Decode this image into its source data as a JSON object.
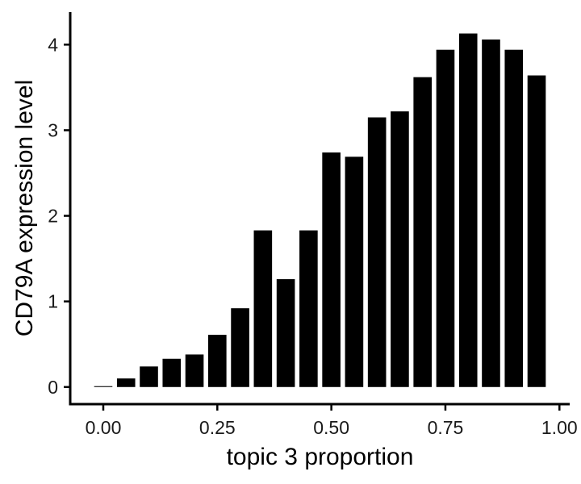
{
  "chart_data": {
    "type": "bar",
    "title": "",
    "xlabel": "topic 3 proportion",
    "ylabel": "CD79A expression level",
    "x": [
      0.0,
      0.05,
      0.1,
      0.15,
      0.2,
      0.25,
      0.3,
      0.35,
      0.4,
      0.45,
      0.5,
      0.55,
      0.6,
      0.65,
      0.7,
      0.75,
      0.8,
      0.85,
      0.9,
      0.95
    ],
    "values": [
      0.01,
      0.1,
      0.24,
      0.33,
      0.38,
      0.61,
      0.92,
      1.83,
      1.26,
      1.83,
      2.74,
      2.69,
      3.15,
      3.22,
      3.62,
      3.94,
      4.13,
      4.06,
      3.94,
      3.64
    ],
    "bar_width": 0.04,
    "xlim": [
      -0.0725,
      1.0225
    ],
    "ylim": [
      -0.2,
      4.38
    ],
    "xticks": [
      0.0,
      0.25,
      0.5,
      0.75,
      1.0
    ],
    "xtick_labels": [
      "0.00",
      "0.25",
      "0.50",
      "0.75",
      "1.00"
    ],
    "yticks": [
      0,
      1,
      2,
      3,
      4
    ],
    "ytick_labels": [
      "0",
      "1",
      "2",
      "3",
      "4"
    ],
    "bar_color": "#000000",
    "axis_color": "#000000",
    "grid": false,
    "legend": "none"
  }
}
